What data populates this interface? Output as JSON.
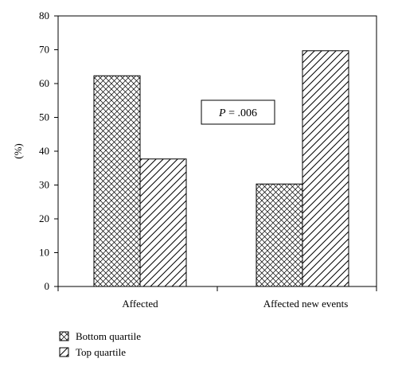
{
  "chart_data": {
    "type": "bar",
    "categories": [
      "Affected",
      "Affected new events"
    ],
    "series": [
      {
        "name": "Bottom quartile",
        "values": [
          62.3,
          30.3
        ],
        "pattern": "crosshatch"
      },
      {
        "name": "Top quartile",
        "values": [
          37.7,
          69.7
        ],
        "pattern": "diagonal"
      }
    ],
    "ylabel": "(%)",
    "ylim": [
      0,
      80
    ],
    "yticks": [
      "0",
      "10",
      "20",
      "30",
      "40",
      "50",
      "60",
      "70",
      "80"
    ],
    "annotation": {
      "italic": "P",
      "rest": " = .006"
    },
    "legend_position": "bottom-left",
    "grid": false,
    "colors": {
      "bar_fill": "#ffffff",
      "stroke": "#000000"
    }
  }
}
